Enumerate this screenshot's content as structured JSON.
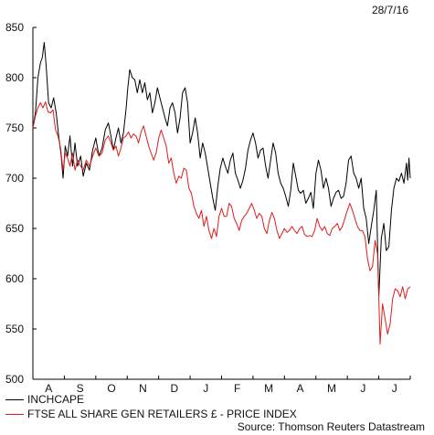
{
  "date_label": "28/7/16",
  "source": "Source: Thomson Reuters Datastream",
  "chart_data": {
    "type": "line",
    "ylim": [
      500,
      850
    ],
    "yticks": [
      500,
      550,
      600,
      650,
      700,
      750,
      800,
      850
    ],
    "x_range": [
      0,
      12
    ],
    "month_labels": [
      "A",
      "S",
      "O",
      "N",
      "D",
      "J",
      "F",
      "M",
      "A",
      "M",
      "J",
      "J"
    ],
    "grid": false,
    "legend_position": "bottom-left",
    "series": [
      {
        "name": "INCHCAPE",
        "color": "#000000",
        "points": [
          [
            0.0,
            750
          ],
          [
            0.08,
            765
          ],
          [
            0.16,
            800
          ],
          [
            0.24,
            815
          ],
          [
            0.3,
            820
          ],
          [
            0.36,
            835
          ],
          [
            0.42,
            812
          ],
          [
            0.5,
            775
          ],
          [
            0.58,
            770
          ],
          [
            0.66,
            780
          ],
          [
            0.74,
            765
          ],
          [
            0.82,
            742
          ],
          [
            0.9,
            722
          ],
          [
            0.96,
            700
          ],
          [
            1.03,
            732
          ],
          [
            1.1,
            722
          ],
          [
            1.18,
            742
          ],
          [
            1.26,
            712
          ],
          [
            1.34,
            735
          ],
          [
            1.42,
            712
          ],
          [
            1.52,
            722
          ],
          [
            1.6,
            702
          ],
          [
            1.7,
            715
          ],
          [
            1.8,
            708
          ],
          [
            1.9,
            728
          ],
          [
            2.0,
            740
          ],
          [
            2.1,
            722
          ],
          [
            2.2,
            730
          ],
          [
            2.3,
            748
          ],
          [
            2.4,
            755
          ],
          [
            2.48,
            742
          ],
          [
            2.56,
            728
          ],
          [
            2.64,
            740
          ],
          [
            2.72,
            750
          ],
          [
            2.8,
            735
          ],
          [
            2.88,
            745
          ],
          [
            2.96,
            768
          ],
          [
            3.02,
            790
          ],
          [
            3.08,
            808
          ],
          [
            3.16,
            800
          ],
          [
            3.24,
            798
          ],
          [
            3.32,
            785
          ],
          [
            3.4,
            798
          ],
          [
            3.48,
            785
          ],
          [
            3.56,
            795
          ],
          [
            3.64,
            778
          ],
          [
            3.72,
            785
          ],
          [
            3.8,
            765
          ],
          [
            3.88,
            775
          ],
          [
            3.96,
            790
          ],
          [
            4.04,
            780
          ],
          [
            4.12,
            770
          ],
          [
            4.2,
            760
          ],
          [
            4.28,
            752
          ],
          [
            4.36,
            770
          ],
          [
            4.44,
            775
          ],
          [
            4.52,
            765
          ],
          [
            4.6,
            745
          ],
          [
            4.68,
            760
          ],
          [
            4.76,
            785
          ],
          [
            4.84,
            790
          ],
          [
            4.92,
            775
          ],
          [
            5.0,
            735
          ],
          [
            5.08,
            745
          ],
          [
            5.16,
            760
          ],
          [
            5.24,
            745
          ],
          [
            5.32,
            720
          ],
          [
            5.4,
            735
          ],
          [
            5.48,
            725
          ],
          [
            5.56,
            710
          ],
          [
            5.64,
            695
          ],
          [
            5.72,
            680
          ],
          [
            5.8,
            668
          ],
          [
            5.88,
            692
          ],
          [
            5.96,
            710
          ],
          [
            6.04,
            720
          ],
          [
            6.12,
            712
          ],
          [
            6.2,
            705
          ],
          [
            6.28,
            718
          ],
          [
            6.36,
            725
          ],
          [
            6.44,
            705
          ],
          [
            6.52,
            698
          ],
          [
            6.6,
            690
          ],
          [
            6.68,
            698
          ],
          [
            6.76,
            710
          ],
          [
            6.84,
            728
          ],
          [
            6.92,
            738
          ],
          [
            7.0,
            745
          ],
          [
            7.08,
            735
          ],
          [
            7.16,
            720
          ],
          [
            7.24,
            728
          ],
          [
            7.32,
            730
          ],
          [
            7.4,
            712
          ],
          [
            7.48,
            700
          ],
          [
            7.56,
            718
          ],
          [
            7.64,
            735
          ],
          [
            7.72,
            725
          ],
          [
            7.8,
            705
          ],
          [
            7.88,
            695
          ],
          [
            7.96,
            690
          ],
          [
            8.04,
            682
          ],
          [
            8.12,
            672
          ],
          [
            8.2,
            688
          ],
          [
            8.28,
            715
          ],
          [
            8.36,
            702
          ],
          [
            8.44,
            688
          ],
          [
            8.52,
            685
          ],
          [
            8.6,
            688
          ],
          [
            8.68,
            675
          ],
          [
            8.76,
            680
          ],
          [
            8.84,
            686
          ],
          [
            8.92,
            670
          ],
          [
            9.0,
            705
          ],
          [
            9.08,
            718
          ],
          [
            9.16,
            708
          ],
          [
            9.24,
            690
          ],
          [
            9.32,
            700
          ],
          [
            9.4,
            690
          ],
          [
            9.48,
            672
          ],
          [
            9.56,
            680
          ],
          [
            9.64,
            686
          ],
          [
            9.72,
            688
          ],
          [
            9.8,
            680
          ],
          [
            9.88,
            682
          ],
          [
            9.96,
            695
          ],
          [
            10.04,
            718
          ],
          [
            10.12,
            722
          ],
          [
            10.2,
            705
          ],
          [
            10.28,
            700
          ],
          [
            10.36,
            690
          ],
          [
            10.44,
            700
          ],
          [
            10.52,
            670
          ],
          [
            10.6,
            660
          ],
          [
            10.68,
            635
          ],
          [
            10.76,
            652
          ],
          [
            10.84,
            668
          ],
          [
            10.92,
            688
          ],
          [
            11.0,
            582
          ],
          [
            11.08,
            640
          ],
          [
            11.16,
            655
          ],
          [
            11.24,
            628
          ],
          [
            11.32,
            632
          ],
          [
            11.4,
            668
          ],
          [
            11.48,
            690
          ],
          [
            11.56,
            700
          ],
          [
            11.64,
            697
          ],
          [
            11.72,
            705
          ],
          [
            11.8,
            695
          ],
          [
            11.88,
            715
          ],
          [
            11.92,
            698
          ],
          [
            11.96,
            720
          ],
          [
            12.0,
            700
          ]
        ]
      },
      {
        "name": "FTSE ALL SHARE GEN RETAILERS £ - PRICE INDEX",
        "color": "#e01b1b",
        "points": [
          [
            0.0,
            750
          ],
          [
            0.08,
            762
          ],
          [
            0.16,
            770
          ],
          [
            0.24,
            775
          ],
          [
            0.32,
            770
          ],
          [
            0.4,
            776
          ],
          [
            0.48,
            766
          ],
          [
            0.56,
            765
          ],
          [
            0.64,
            768
          ],
          [
            0.72,
            748
          ],
          [
            0.8,
            742
          ],
          [
            0.88,
            730
          ],
          [
            0.96,
            708
          ],
          [
            1.03,
            725
          ],
          [
            1.1,
            720
          ],
          [
            1.18,
            712
          ],
          [
            1.26,
            725
          ],
          [
            1.34,
            708
          ],
          [
            1.42,
            718
          ],
          [
            1.52,
            712
          ],
          [
            1.6,
            708
          ],
          [
            1.7,
            718
          ],
          [
            1.8,
            712
          ],
          [
            1.9,
            722
          ],
          [
            2.0,
            730
          ],
          [
            2.1,
            722
          ],
          [
            2.2,
            725
          ],
          [
            2.3,
            738
          ],
          [
            2.4,
            742
          ],
          [
            2.48,
            735
          ],
          [
            2.56,
            728
          ],
          [
            2.64,
            732
          ],
          [
            2.72,
            722
          ],
          [
            2.8,
            730
          ],
          [
            2.88,
            740
          ],
          [
            2.96,
            742
          ],
          [
            3.04,
            746
          ],
          [
            3.12,
            740
          ],
          [
            3.2,
            744
          ],
          [
            3.28,
            742
          ],
          [
            3.36,
            735
          ],
          [
            3.44,
            746
          ],
          [
            3.52,
            752
          ],
          [
            3.6,
            742
          ],
          [
            3.68,
            732
          ],
          [
            3.76,
            725
          ],
          [
            3.84,
            718
          ],
          [
            3.92,
            725
          ],
          [
            4.0,
            740
          ],
          [
            4.08,
            748
          ],
          [
            4.16,
            740
          ],
          [
            4.24,
            732
          ],
          [
            4.32,
            715
          ],
          [
            4.4,
            720
          ],
          [
            4.48,
            705
          ],
          [
            4.56,
            695
          ],
          [
            4.64,
            702
          ],
          [
            4.72,
            700
          ],
          [
            4.8,
            710
          ],
          [
            4.88,
            708
          ],
          [
            4.96,
            690
          ],
          [
            5.04,
            685
          ],
          [
            5.12,
            672
          ],
          [
            5.2,
            665
          ],
          [
            5.28,
            660
          ],
          [
            5.36,
            668
          ],
          [
            5.44,
            652
          ],
          [
            5.52,
            662
          ],
          [
            5.6,
            648
          ],
          [
            5.68,
            640
          ],
          [
            5.76,
            650
          ],
          [
            5.84,
            642
          ],
          [
            5.92,
            662
          ],
          [
            6.0,
            670
          ],
          [
            6.08,
            662
          ],
          [
            6.16,
            662
          ],
          [
            6.24,
            675
          ],
          [
            6.32,
            672
          ],
          [
            6.4,
            660
          ],
          [
            6.48,
            655
          ],
          [
            6.56,
            648
          ],
          [
            6.64,
            658
          ],
          [
            6.72,
            662
          ],
          [
            6.8,
            665
          ],
          [
            6.88,
            670
          ],
          [
            6.96,
            675
          ],
          [
            7.04,
            668
          ],
          [
            7.12,
            660
          ],
          [
            7.2,
            665
          ],
          [
            7.28,
            662
          ],
          [
            7.36,
            650
          ],
          [
            7.44,
            645
          ],
          [
            7.52,
            658
          ],
          [
            7.6,
            666
          ],
          [
            7.68,
            660
          ],
          [
            7.76,
            648
          ],
          [
            7.84,
            640
          ],
          [
            7.92,
            645
          ],
          [
            8.0,
            650
          ],
          [
            8.08,
            646
          ],
          [
            8.16,
            648
          ],
          [
            8.24,
            652
          ],
          [
            8.32,
            648
          ],
          [
            8.4,
            645
          ],
          [
            8.48,
            650
          ],
          [
            8.56,
            652
          ],
          [
            8.64,
            644
          ],
          [
            8.72,
            642
          ],
          [
            8.8,
            643
          ],
          [
            8.88,
            642
          ],
          [
            8.96,
            648
          ],
          [
            9.04,
            660
          ],
          [
            9.12,
            652
          ],
          [
            9.2,
            648
          ],
          [
            9.28,
            652
          ],
          [
            9.36,
            645
          ],
          [
            9.44,
            643
          ],
          [
            9.52,
            650
          ],
          [
            9.6,
            652
          ],
          [
            9.68,
            655
          ],
          [
            9.76,
            648
          ],
          [
            9.84,
            652
          ],
          [
            9.92,
            660
          ],
          [
            10.0,
            668
          ],
          [
            10.08,
            675
          ],
          [
            10.16,
            668
          ],
          [
            10.24,
            660
          ],
          [
            10.32,
            652
          ],
          [
            10.4,
            648
          ],
          [
            10.48,
            648
          ],
          [
            10.56,
            642
          ],
          [
            10.64,
            620
          ],
          [
            10.72,
            608
          ],
          [
            10.8,
            612
          ],
          [
            10.88,
            638
          ],
          [
            10.96,
            625
          ],
          [
            11.04,
            535
          ],
          [
            11.12,
            575
          ],
          [
            11.2,
            560
          ],
          [
            11.28,
            545
          ],
          [
            11.36,
            555
          ],
          [
            11.44,
            580
          ],
          [
            11.52,
            590
          ],
          [
            11.6,
            588
          ],
          [
            11.68,
            582
          ],
          [
            11.76,
            592
          ],
          [
            11.84,
            580
          ],
          [
            11.92,
            590
          ],
          [
            12.0,
            592
          ]
        ]
      }
    ]
  }
}
